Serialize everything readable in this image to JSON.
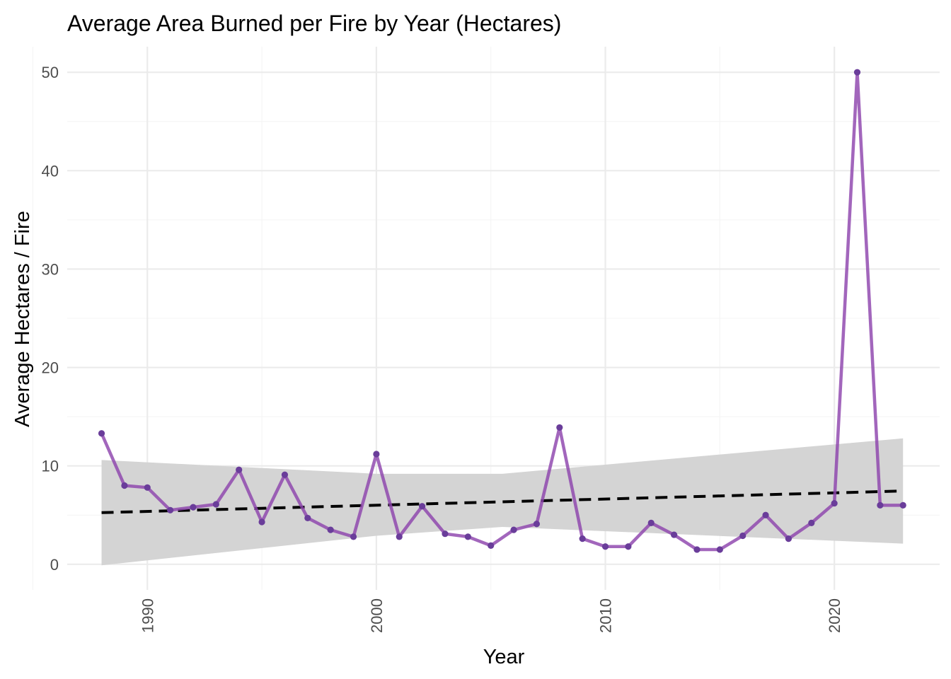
{
  "chart_data": {
    "type": "line",
    "title": "Average Area Burned per Fire by Year (Hectares)",
    "xlabel": "Year",
    "ylabel": "Average Hectares / Fire",
    "xlim": [
      1986.5,
      2024.6
    ],
    "ylim": [
      -2.6,
      52.6
    ],
    "x_ticks": [
      1990,
      2000,
      2010,
      2020
    ],
    "x_tick_labels": [
      "1990",
      "2000",
      "2010",
      "2020"
    ],
    "y_ticks": [
      0,
      10,
      20,
      30,
      40,
      50
    ],
    "y_tick_labels": [
      "0",
      "10",
      "20",
      "30",
      "40",
      "50"
    ],
    "grid": true,
    "series": [
      {
        "kind": "line-with-points",
        "color": "#8e44ad",
        "point_color": "#6a3d9a",
        "x": [
          1988,
          1989,
          1990,
          1991,
          1992,
          1993,
          1994,
          1995,
          1996,
          1997,
          1998,
          1999,
          2000,
          2001,
          2002,
          2003,
          2004,
          2005,
          2006,
          2007,
          2008,
          2009,
          2010,
          2011,
          2012,
          2013,
          2014,
          2015,
          2016,
          2017,
          2018,
          2019,
          2020,
          2021,
          2022,
          2023
        ],
        "y": [
          13.3,
          8.0,
          7.8,
          5.5,
          5.8,
          6.1,
          9.6,
          4.3,
          9.1,
          4.7,
          3.5,
          2.8,
          11.2,
          2.8,
          5.9,
          3.1,
          2.8,
          1.9,
          3.5,
          4.1,
          13.9,
          2.6,
          1.8,
          1.8,
          4.2,
          3.0,
          1.5,
          1.5,
          2.9,
          5.0,
          2.6,
          4.2,
          6.2,
          50.0,
          6.0,
          6.0
        ]
      },
      {
        "kind": "linear-trend",
        "color": "#000000",
        "style": "dashed",
        "x": [
          1988,
          2023
        ],
        "y": [
          5.25,
          7.45
        ]
      },
      {
        "kind": "confidence-band",
        "color": "#d4d4d4",
        "x": [
          1988,
          2000,
          2005.5,
          2023
        ],
        "lower": [
          -0.1,
          2.9,
          3.8,
          2.1
        ],
        "upper": [
          10.6,
          9.2,
          9.2,
          12.8
        ]
      }
    ]
  }
}
